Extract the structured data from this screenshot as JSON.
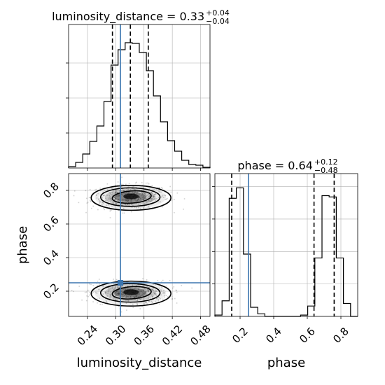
{
  "colors": {
    "truth": "#3b75af",
    "hist": "#000000",
    "grid": "#b0b0b0",
    "density": "#000000"
  },
  "chart_data": [
    {
      "type": "histogram",
      "panel": "luminosity_distance marginal",
      "title": {
        "prefix": "luminosity_distance = 0.33",
        "sup": "+0.04",
        "sub": "−0.04"
      },
      "bin_edges": [
        0.2,
        0.215,
        0.23,
        0.245,
        0.26,
        0.275,
        0.29,
        0.305,
        0.32,
        0.335,
        0.35,
        0.365,
        0.38,
        0.395,
        0.41,
        0.425,
        0.44,
        0.455,
        0.47,
        0.485,
        0.5
      ],
      "counts": [
        0.2,
        0.8,
        2.0,
        3.8,
        6.0,
        9.5,
        14.7,
        16.9,
        17.9,
        17.8,
        16.5,
        13.9,
        10.3,
        6.6,
        3.9,
        2.4,
        1.1,
        0.5,
        0.4,
        0.1
      ],
      "ylim": [
        0,
        20.5
      ],
      "ytick_values": [
        5,
        10,
        15
      ],
      "xlim": [
        0.2,
        0.5
      ],
      "quantiles": [
        0.293,
        0.331,
        0.369
      ],
      "truth": 0.31
    },
    {
      "type": "contour",
      "panel": "luminosity_distance vs phase",
      "xlabel": "luminosity_distance",
      "ylabel": "phase",
      "xlim": [
        0.2,
        0.5
      ],
      "ylim": [
        0.05,
        0.9
      ],
      "xticks": [
        0.24,
        0.3,
        0.36,
        0.42,
        0.48
      ],
      "xtick_labels": [
        "0.24",
        "0.30",
        "0.36",
        "0.42",
        "0.48"
      ],
      "yticks": [
        0.2,
        0.4,
        0.6,
        0.8
      ],
      "ytick_labels": [
        "0.2",
        "0.4",
        "0.6",
        "0.8"
      ],
      "modes": [
        {
          "x": 0.331,
          "y": 0.76,
          "sx": 0.036,
          "sy": 0.038
        },
        {
          "x": 0.331,
          "y": 0.19,
          "sx": 0.036,
          "sy": 0.038
        }
      ],
      "truth": {
        "x": 0.31,
        "y": 0.25
      }
    },
    {
      "type": "histogram",
      "panel": "phase marginal",
      "title": {
        "prefix": "phase = 0.64",
        "sup": "+0.12",
        "sub": "−0.48"
      },
      "xlabel": "phase",
      "bin_edges": [
        0.05,
        0.0925,
        0.135,
        0.1775,
        0.22,
        0.2625,
        0.305,
        0.3475,
        0.39,
        0.4325,
        0.475,
        0.5175,
        0.56,
        0.6025,
        0.645,
        0.6875,
        0.73,
        0.7725,
        0.815,
        0.8575,
        0.9
      ],
      "counts": [
        0.1,
        1.2,
        9.1,
        9.9,
        4.8,
        0.7,
        0.2,
        0,
        0,
        0,
        0,
        0,
        0.1,
        0.8,
        4.5,
        9.3,
        9.2,
        4.5,
        1.0,
        0
      ],
      "ylim": [
        0,
        11.0
      ],
      "ytick_values": [
        2.5,
        5,
        7.5,
        10
      ],
      "xlim": [
        0.05,
        0.9
      ],
      "xticks": [
        0.2,
        0.4,
        0.6,
        0.8
      ],
      "xtick_labels": [
        "0.2",
        "0.4",
        "0.6",
        "0.8"
      ],
      "quantiles": [
        0.15,
        0.64,
        0.76
      ],
      "truth": 0.25
    }
  ]
}
